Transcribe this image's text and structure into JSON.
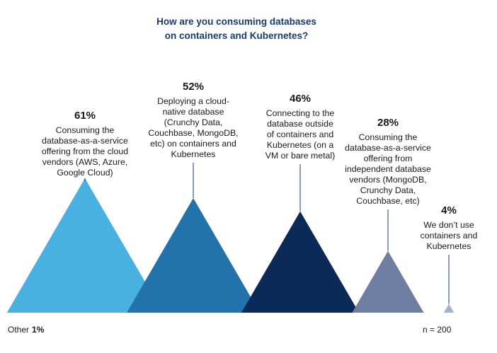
{
  "chart_data": {
    "type": "bar",
    "title": "How are you consuming databases on containers and Kubernetes?",
    "title_lines": [
      "How are you consuming databases",
      "on containers and Kubernetes?"
    ],
    "categories": [
      "Consuming the database-as-a-service offering from the cloud vendors (AWS, Azure, Google Cloud)",
      "Deploying a cloud-native database (Crunchy Data, Couchbase, MongoDB, etc) on containers and Kubernetes",
      "Connecting to the database outside of containers and Kubernetes (on a VM or bare metal)",
      "Consuming the database-as-a-service offering from independent database vendors (MongoDB, Crunchy Data, Couchbase, etc)",
      "We don’t use containers and Kubernetes"
    ],
    "values": [
      61,
      52,
      46,
      28,
      4
    ],
    "value_labels": [
      "61%",
      "52%",
      "46%",
      "28%",
      "4%"
    ],
    "category_label_lines": [
      [
        "Consuming the",
        "database-as-a-service",
        "offering from the cloud",
        "vendors (AWS, Azure,",
        "Google Cloud)"
      ],
      [
        "Deploying a cloud-",
        "native database",
        "(Crunchy Data,",
        "Couchbase, MongoDB,",
        "etc) on containers and",
        "Kubernetes"
      ],
      [
        "Connecting to the",
        "database outside",
        "of containers and",
        "Kubernetes (on a",
        "VM or bare metal)"
      ],
      [
        "Consuming the",
        "database-as-a-service",
        "offering from",
        "independent database",
        "vendors (MongoDB,",
        "Crunchy Data,",
        "Couchbase, etc)"
      ],
      [
        "We don’t use",
        "containers and",
        "Kubernetes"
      ]
    ],
    "colors": [
      "#48b1e1",
      "#2272ac",
      "#0b2a57",
      "#6e7fa1",
      "#a5b3c9"
    ],
    "ylim": [
      0,
      61
    ],
    "xlabel": "",
    "ylabel": "",
    "grid": false,
    "legend": "none"
  },
  "footer": {
    "other_label": "Other",
    "other_value": "1%",
    "sample_size": "n = 200"
  },
  "style": {
    "title_color": "#1b3a6b",
    "text_color": "#1a1a1a",
    "connector_color": "#1b3a6b"
  }
}
